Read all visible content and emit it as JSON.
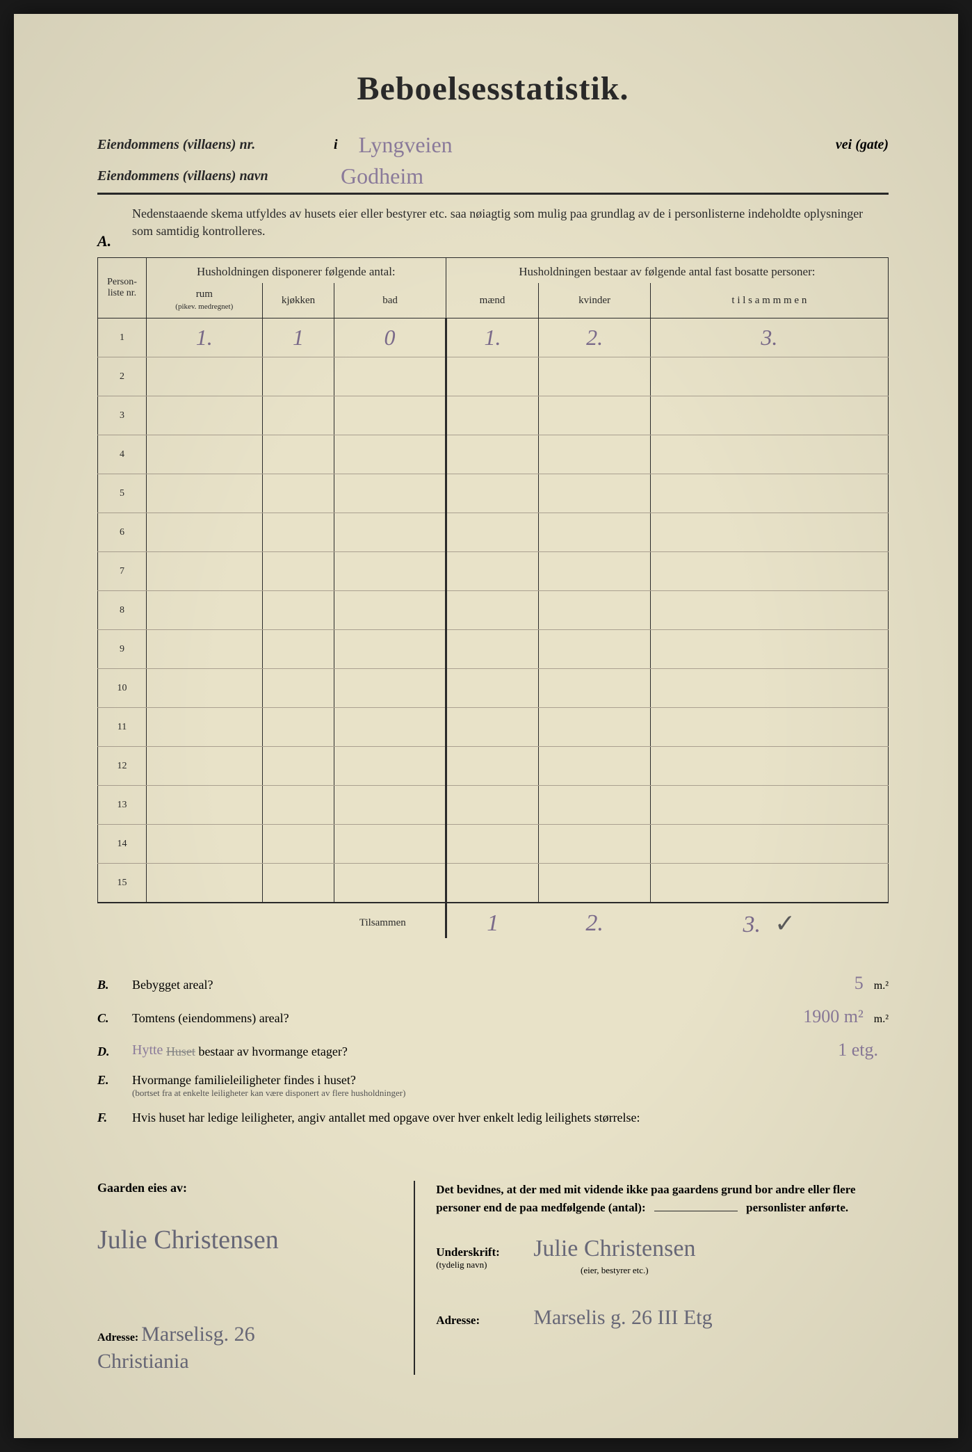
{
  "title": "Beboelsesstatistik.",
  "header": {
    "property_nr_label": "Eiendommens (villaens) nr.",
    "i_label": "i",
    "street_value": "Lyngveien",
    "street_suffix": "vei (gate)",
    "property_name_label": "Eiendommens (villaens) navn",
    "property_name_value": "Godheim"
  },
  "section_a": {
    "label": "A.",
    "instructions": "Nedenstaaende skema utfyldes av husets eier eller bestyrer etc. saa nøiagtig som mulig paa grundlag av de i personlisterne indeholdte oplysninger som samtidig kontrolleres.",
    "col_personliste": "Person-\nliste\nnr.",
    "group1_header": "Husholdningen disponerer følgende antal:",
    "col_rum": "rum",
    "col_rum_sub": "(pikev. medregnet)",
    "col_kjokken": "kjøkken",
    "col_bad": "bad",
    "group2_header": "Husholdningen bestaar av følgende antal fast bosatte personer:",
    "col_maend": "mænd",
    "col_kvinder": "kvinder",
    "col_tilsammen": "t i l s a m m m e n",
    "rows": [
      {
        "nr": "1",
        "rum": "1.",
        "kjokken": "1",
        "bad": "0",
        "maend": "1.",
        "kvinder": "2.",
        "tilsammen": "3."
      },
      {
        "nr": "2"
      },
      {
        "nr": "3"
      },
      {
        "nr": "4"
      },
      {
        "nr": "5"
      },
      {
        "nr": "6"
      },
      {
        "nr": "7"
      },
      {
        "nr": "8"
      },
      {
        "nr": "9"
      },
      {
        "nr": "10"
      },
      {
        "nr": "11"
      },
      {
        "nr": "12"
      },
      {
        "nr": "13"
      },
      {
        "nr": "14"
      },
      {
        "nr": "15"
      }
    ],
    "totals_label": "Tilsammen",
    "totals": {
      "maend": "1",
      "kvinder": "2.",
      "tilsammen": "3.",
      "check": "✓"
    }
  },
  "questions": {
    "b": {
      "label": "B.",
      "text": "Bebygget areal?",
      "value": "5",
      "unit": "m.²"
    },
    "c": {
      "label": "C.",
      "text": "Tomtens (eiendommens) areal?",
      "value": "1900 m²",
      "unit": "m.²"
    },
    "d": {
      "label": "D.",
      "annotation": "Hytte",
      "text_struck": "Huset",
      "text": " bestaar av hvormange etager?",
      "value": "1 etg."
    },
    "e": {
      "label": "E.",
      "text": "Hvormange familieleiligheter findes i huset?",
      "small": "(bortset fra at enkelte leiligheter kan være disponert av flere husholdninger)"
    },
    "f": {
      "label": "F.",
      "text": "Hvis huset har ledige leiligheter, angiv antallet med opgave over hver enkelt ledig leilighets størrelse:"
    }
  },
  "bottom": {
    "owner_label": "Gaarden eies av:",
    "owner_signature": "Julie Christensen",
    "owner_addr_label": "Adresse:",
    "owner_addr": "Marselisg. 26",
    "owner_city": "Christiania",
    "attestation": "Det bevidnes, at der med mit vidende ikke paa gaardens grund bor andre eller flere personer end de paa medfølgende (antal):",
    "attestation_suffix": "personlister anførte.",
    "signature_label": "Underskrift:",
    "signature_sublabel": "(tydelig navn)",
    "signature_role": "(eier, bestyrer etc.)",
    "signature_value": "Julie Christensen",
    "right_addr_label": "Adresse:",
    "right_addr": "Marselis g. 26 III Etg"
  },
  "styling": {
    "page_bg": "#e8e2c8",
    "text_color": "#2a2a2a",
    "handwriting_color": "#7a6a8a",
    "title_fontsize": 48,
    "body_fontsize": 18
  }
}
